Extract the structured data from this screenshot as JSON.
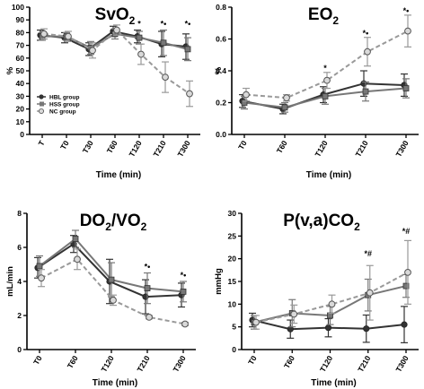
{
  "chart_data": [
    {
      "type": "line",
      "title_main": "SvO",
      "title_sub": "2",
      "title_tail": "",
      "ylabel": "%",
      "xlabel": "Time (min)",
      "ylim": [
        0,
        100
      ],
      "yticks": [
        0,
        10,
        20,
        30,
        40,
        50,
        60,
        70,
        80,
        90,
        100
      ],
      "categories": [
        "T",
        "T0",
        "T30",
        "T60",
        "T120",
        "T210",
        "T300"
      ],
      "legend_position": "bottom-left",
      "series": [
        {
          "name": "HBL group",
          "color": "#333333",
          "dashed": false,
          "marker": "circle",
          "values": [
            78,
            76,
            67,
            81,
            77,
            71,
            69
          ],
          "errors": [
            4,
            4,
            5,
            4,
            5,
            10,
            10
          ]
        },
        {
          "name": "HSS group",
          "color": "#777777",
          "dashed": false,
          "marker": "square",
          "values": [
            77,
            77,
            68,
            79,
            76,
            72,
            67
          ],
          "errors": [
            3,
            3,
            5,
            4,
            5,
            10,
            9
          ]
        },
        {
          "name": "NC group",
          "color": "#999999",
          "dashed": true,
          "marker": "circle-open",
          "values": [
            79,
            77,
            66,
            82,
            63,
            45,
            32
          ],
          "errors": [
            4,
            4,
            6,
            4,
            8,
            12,
            10
          ]
        }
      ],
      "annotations": [
        {
          "category": "T120",
          "value": 85,
          "text": "*"
        },
        {
          "category": "T210",
          "value": 85,
          "text": "*•"
        },
        {
          "category": "T300",
          "value": 85,
          "text": "*•"
        }
      ]
    },
    {
      "type": "line",
      "title_main": "EO",
      "title_sub": "2",
      "title_tail": "",
      "ylabel": "%",
      "xlabel": "Time (min)",
      "ylim": [
        0,
        0.8
      ],
      "yticks": [
        0,
        0.2,
        0.4,
        0.6,
        0.8
      ],
      "ytick_labels": [
        "0.0",
        "0.2",
        "0.4",
        "0.6",
        "0.8"
      ],
      "categories": [
        "T0",
        "T60",
        "T120",
        "T210",
        "T300"
      ],
      "series": [
        {
          "name": "HBL group",
          "color": "#333333",
          "dashed": false,
          "marker": "circle",
          "values": [
            0.21,
            0.16,
            0.25,
            0.32,
            0.31
          ],
          "errors": [
            0.04,
            0.03,
            0.05,
            0.08,
            0.07
          ]
        },
        {
          "name": "HSS group",
          "color": "#777777",
          "dashed": false,
          "marker": "square",
          "values": [
            0.2,
            0.17,
            0.24,
            0.27,
            0.29
          ],
          "errors": [
            0.04,
            0.03,
            0.05,
            0.06,
            0.06
          ]
        },
        {
          "name": "NC group",
          "color": "#999999",
          "dashed": true,
          "marker": "circle-open",
          "values": [
            0.25,
            0.23,
            0.34,
            0.52,
            0.65
          ],
          "errors": [
            0.04,
            0.02,
            0.05,
            0.09,
            0.1
          ]
        }
      ],
      "annotations": [
        {
          "category": "T120",
          "value": 0.4,
          "text": "*"
        },
        {
          "category": "T210",
          "value": 0.62,
          "text": "*•"
        },
        {
          "category": "T300",
          "value": 0.76,
          "text": "*•"
        }
      ]
    },
    {
      "type": "line",
      "title_main": "DO",
      "title_sub": "2",
      "title_tail": "/VO",
      "title_sub2": "2",
      "ylabel": "mL/min",
      "xlabel": "Time (min)",
      "ylim": [
        0,
        8
      ],
      "yticks": [
        0,
        2,
        4,
        6,
        8
      ],
      "categories": [
        "T0",
        "T60",
        "T120",
        "T210",
        "T300"
      ],
      "series": [
        {
          "name": "HBL group",
          "color": "#333333",
          "dashed": false,
          "marker": "circle",
          "values": [
            4.8,
            6.2,
            4.0,
            3.1,
            3.2
          ],
          "errors": [
            0.6,
            0.5,
            1.3,
            1.0,
            0.7
          ]
        },
        {
          "name": "HSS group",
          "color": "#777777",
          "dashed": false,
          "marker": "square",
          "values": [
            4.9,
            6.5,
            4.1,
            3.6,
            3.4
          ],
          "errors": [
            0.6,
            0.5,
            1.0,
            0.9,
            0.6
          ]
        },
        {
          "name": "NC group",
          "color": "#999999",
          "dashed": true,
          "marker": "circle-open",
          "values": [
            4.2,
            5.3,
            2.9,
            1.9,
            1.5
          ],
          "errors": [
            0.5,
            0.6,
            0.3,
            0.1,
            0.1
          ]
        }
      ],
      "annotations": [
        {
          "category": "T210",
          "value": 4.7,
          "text": "*•"
        },
        {
          "category": "T300",
          "value": 4.2,
          "text": "*•"
        }
      ]
    },
    {
      "type": "line",
      "title_main": "P(v,a)CO",
      "title_sub": "2",
      "title_tail": "",
      "ylabel": "mmHg",
      "xlabel": "Time (min)",
      "ylim": [
        0,
        30
      ],
      "yticks": [
        0,
        5,
        10,
        15,
        20,
        25,
        30
      ],
      "categories": [
        "T0",
        "T60",
        "T120",
        "T210",
        "T300"
      ],
      "series": [
        {
          "name": "HBL group",
          "color": "#333333",
          "dashed": false,
          "marker": "circle",
          "values": [
            6.5,
            4.5,
            4.8,
            4.6,
            5.5
          ],
          "errors": [
            1.5,
            2.0,
            2.0,
            3.0,
            4.0
          ]
        },
        {
          "name": "HSS group",
          "color": "#777777",
          "dashed": false,
          "marker": "square",
          "values": [
            6.0,
            8.0,
            7.5,
            12.0,
            14.0
          ],
          "errors": [
            1.5,
            3.0,
            2.0,
            3.5,
            2.5
          ]
        },
        {
          "name": "NC group",
          "color": "#999999",
          "dashed": true,
          "marker": "circle-open",
          "values": [
            6.0,
            7.8,
            10.0,
            12.5,
            17.0
          ],
          "errors": [
            1.5,
            2.0,
            2.0,
            6.0,
            7.0
          ]
        }
      ],
      "annotations": [
        {
          "category": "T210",
          "value": 20.5,
          "text": "*#"
        },
        {
          "category": "T300",
          "value": 25.5,
          "text": "*#"
        }
      ]
    }
  ]
}
